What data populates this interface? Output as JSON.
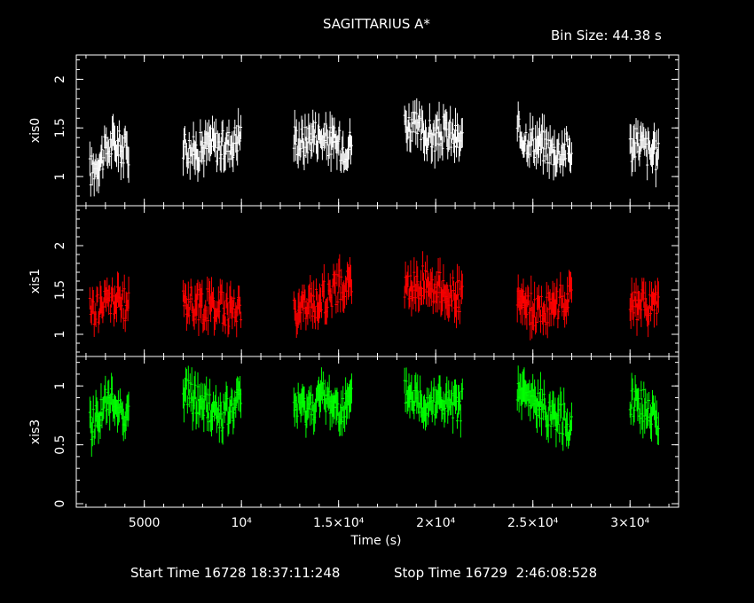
{
  "header": {
    "title": "SAGITTARIUS A*",
    "bin_size": "Bin Size: 44.38 s"
  },
  "footer": {
    "start_label": "Start Time 16728 18:37:11:248",
    "stop_label": "Stop Time 16729  2:46:08:528"
  },
  "colors": {
    "xis0": "#ffffff",
    "xis1": "#ff0000",
    "xis3": "#00ff00",
    "axes": "#ffffff",
    "background": "#000000"
  },
  "chart_data": {
    "type": "scatter",
    "title": "SAGITTARIUS A*",
    "xlabel": "Time (s)",
    "xlim": [
      1500,
      32500
    ],
    "x_ticks": [
      5000,
      10000,
      15000,
      20000,
      25000,
      30000
    ],
    "x_tick_labels": [
      "5000",
      "10⁴",
      "1.5×10⁴",
      "2×10⁴",
      "2.5×10⁴",
      "3×10⁴"
    ],
    "grid": false,
    "series": [
      {
        "name": "xis0",
        "ylabel": "xis0",
        "ylim": [
          0.7,
          2.25
        ],
        "y_ticks": [
          1,
          1.5,
          2
        ],
        "y_tick_labels": [
          "1",
          "1.5",
          "2"
        ],
        "segments": [
          {
            "t": [
              2200,
              2600,
              3000,
              3400,
              3800,
              4200
            ],
            "y": [
              1.05,
              1.15,
              1.25,
              1.35,
              1.3,
              1.25
            ]
          },
          {
            "t": [
              7000,
              7500,
              8000,
              8500,
              9000,
              9500,
              10000
            ],
            "y": [
              1.35,
              1.25,
              1.3,
              1.35,
              1.3,
              1.35,
              1.45
            ]
          },
          {
            "t": [
              12700,
              13200,
              13700,
              14200,
              14700,
              15200,
              15700
            ],
            "y": [
              1.4,
              1.35,
              1.45,
              1.4,
              1.35,
              1.3,
              1.35
            ]
          },
          {
            "t": [
              18400,
              18900,
              19400,
              19900,
              20400,
              20900,
              21400
            ],
            "y": [
              1.55,
              1.5,
              1.45,
              1.4,
              1.45,
              1.4,
              1.35
            ]
          },
          {
            "t": [
              24200,
              24700,
              25200,
              25700,
              26200,
              26700,
              27000
            ],
            "y": [
              1.45,
              1.4,
              1.35,
              1.3,
              1.25,
              1.3,
              1.25
            ]
          },
          {
            "t": [
              30000,
              30500,
              31000,
              31500
            ],
            "y": [
              1.3,
              1.35,
              1.25,
              1.2
            ]
          }
        ]
      },
      {
        "name": "xis1",
        "ylabel": "xis1",
        "ylim": [
          0.75,
          2.45
        ],
        "y_ticks": [
          1,
          1.5,
          2
        ],
        "y_tick_labels": [
          "1",
          "1.5",
          "2"
        ],
        "segments": [
          {
            "t": [
              2200,
              2600,
              3000,
              3400,
              3800,
              4200
            ],
            "y": [
              1.25,
              1.3,
              1.35,
              1.4,
              1.35,
              1.3
            ]
          },
          {
            "t": [
              7000,
              7500,
              8000,
              8500,
              9000,
              9500,
              10000
            ],
            "y": [
              1.4,
              1.35,
              1.3,
              1.35,
              1.3,
              1.25,
              1.35
            ]
          },
          {
            "t": [
              12700,
              13200,
              13700,
              14200,
              14700,
              15200,
              15700
            ],
            "y": [
              1.25,
              1.3,
              1.35,
              1.4,
              1.5,
              1.55,
              1.6
            ]
          },
          {
            "t": [
              18400,
              18900,
              19400,
              19900,
              20400,
              20900,
              21400
            ],
            "y": [
              1.5,
              1.55,
              1.6,
              1.55,
              1.5,
              1.45,
              1.4
            ]
          },
          {
            "t": [
              24200,
              24700,
              25200,
              25700,
              26200,
              26700,
              27000
            ],
            "y": [
              1.35,
              1.3,
              1.25,
              1.3,
              1.35,
              1.4,
              1.45
            ]
          },
          {
            "t": [
              30000,
              30500,
              31000,
              31500
            ],
            "y": [
              1.3,
              1.35,
              1.3,
              1.4
            ]
          }
        ]
      },
      {
        "name": "xis3",
        "ylabel": "xis3",
        "ylim": [
          -0.03,
          1.25
        ],
        "y_ticks": [
          0,
          0.5,
          1
        ],
        "y_tick_labels": [
          "0",
          "0.5",
          "1"
        ],
        "segments": [
          {
            "t": [
              2200,
              2600,
              3000,
              3400,
              3800,
              4200
            ],
            "y": [
              0.65,
              0.75,
              0.85,
              0.85,
              0.8,
              0.75
            ]
          },
          {
            "t": [
              7000,
              7500,
              8000,
              8500,
              9000,
              9500,
              10000
            ],
            "y": [
              0.95,
              0.9,
              0.85,
              0.8,
              0.75,
              0.8,
              0.9
            ]
          },
          {
            "t": [
              12700,
              13200,
              13700,
              14200,
              14700,
              15200,
              15700
            ],
            "y": [
              0.85,
              0.8,
              0.85,
              0.9,
              0.85,
              0.8,
              0.85
            ]
          },
          {
            "t": [
              18400,
              18900,
              19400,
              19900,
              20400,
              20900,
              21400
            ],
            "y": [
              0.95,
              0.9,
              0.85,
              0.9,
              0.85,
              0.8,
              0.85
            ]
          },
          {
            "t": [
              24200,
              24700,
              25200,
              25700,
              26200,
              26700,
              27000
            ],
            "y": [
              0.95,
              0.9,
              0.85,
              0.8,
              0.75,
              0.7,
              0.65
            ]
          },
          {
            "t": [
              30000,
              30500,
              31000,
              31500
            ],
            "y": [
              0.9,
              0.85,
              0.8,
              0.7
            ]
          }
        ]
      }
    ]
  }
}
